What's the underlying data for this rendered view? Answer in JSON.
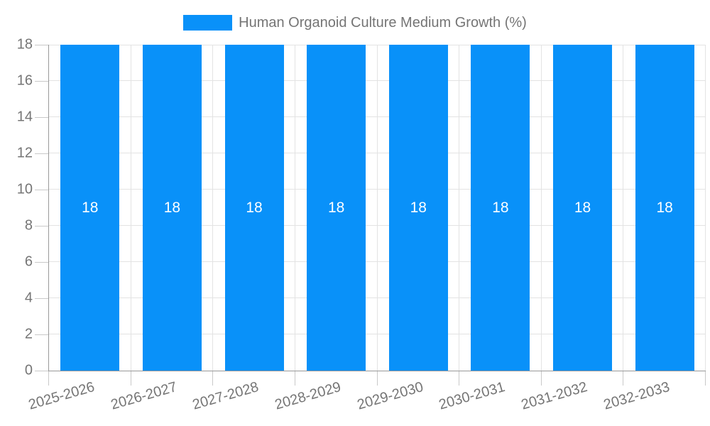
{
  "chart_data": {
    "type": "bar",
    "legend_label": "Human Organoid Culture Medium Growth (%)",
    "legend_position": "top",
    "categories": [
      "2025-2026",
      "2026-2027",
      "2027-2028",
      "2028-2029",
      "2029-2030",
      "2030-2031",
      "2031-2032",
      "2032-2033"
    ],
    "values": [
      18,
      18,
      18,
      18,
      18,
      18,
      18,
      18
    ],
    "bar_value_labels": [
      "18",
      "18",
      "18",
      "18",
      "18",
      "18",
      "18",
      "18"
    ],
    "xlabel": "",
    "ylabel": "",
    "ylim": [
      0,
      18
    ],
    "yticks": [
      0,
      2,
      4,
      6,
      8,
      10,
      12,
      14,
      16,
      18
    ],
    "grid": true,
    "colors": {
      "bar": "#0991f9",
      "grid": "#e3e3e3",
      "axis": "#999999",
      "tick": "#c9c9c9",
      "axis_label": "#757575",
      "bar_value_label": "#ffffff",
      "background": "#ffffff"
    }
  }
}
